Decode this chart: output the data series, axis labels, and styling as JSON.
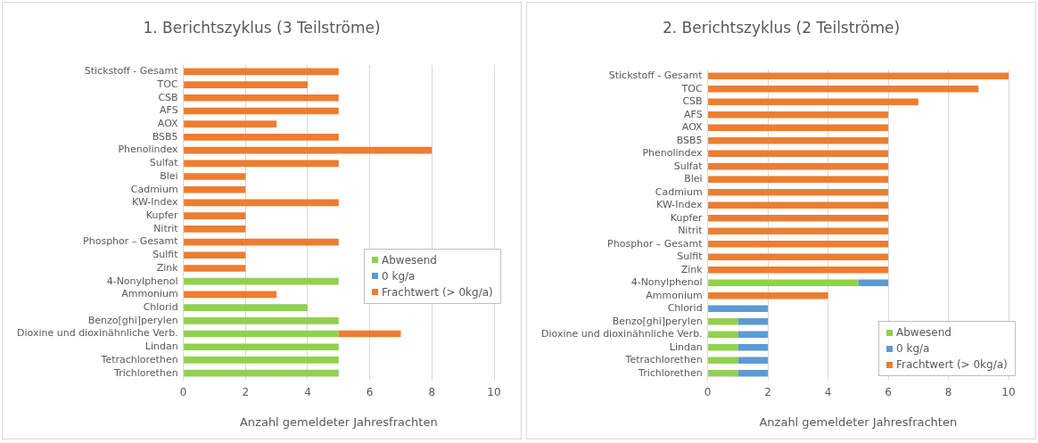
{
  "chart_data": [
    {
      "type": "bar",
      "orientation": "horizontal",
      "stacked": true,
      "title": "1. Berichtszyklus (3 Teilströme)",
      "xlabel": "Anzahl gemeldeter Jahresfrachten",
      "categories": [
        "Stickstoff - Gesamt",
        "TOC",
        "CSB",
        "AFS",
        "AOX",
        "BSB5",
        "Phenolindex",
        "Sulfat",
        "Blei",
        "Cadmium",
        "KW-Index",
        "Kupfer",
        "Nitrit",
        "Phosphor – Gesamt",
        "Sulfit",
        "Zink",
        "4-Nonylphenol",
        "Ammonium",
        "Chlorid",
        "Benzo[ghi]perylen",
        "Dioxine und dioxinähnliche Verb.",
        "Lindan",
        "Tetrachlorethen",
        "Trichlorethen"
      ],
      "series": [
        {
          "name": "Abwesend",
          "color": "#92d050",
          "values": [
            0,
            0,
            0,
            0,
            0,
            0,
            0,
            0,
            0,
            0,
            0,
            0,
            0,
            0,
            0,
            0,
            5,
            0,
            4,
            5,
            5,
            5,
            5,
            5
          ]
        },
        {
          "name": "0 kg/a",
          "color": "#5b9bd5",
          "values": [
            0,
            0,
            0,
            0,
            0,
            0,
            0,
            0,
            0,
            0,
            0,
            0,
            0,
            0,
            0,
            0,
            0,
            0,
            0,
            0,
            0,
            0,
            0,
            0
          ]
        },
        {
          "name": "Frachtwert (> 0kg/a)",
          "color": "#ed7d31",
          "values": [
            5,
            4,
            5,
            5,
            3,
            5,
            8,
            5,
            2,
            2,
            5,
            2,
            2,
            5,
            2,
            2,
            0,
            3,
            0,
            0,
            2,
            0,
            0,
            0
          ]
        }
      ],
      "xlim": [
        0,
        10
      ],
      "xticks": [
        0,
        2,
        4,
        6,
        8,
        10
      ],
      "grid": "x",
      "legend": "right"
    },
    {
      "type": "bar",
      "orientation": "horizontal",
      "stacked": true,
      "title": "2. Berichtszyklus (2 Teilströme)",
      "xlabel": "Anzahl gemeldeter Jahresfrachten",
      "categories": [
        "Stickstoff - Gesamt",
        "TOC",
        "CSB",
        "AFS",
        "AOX",
        "BSB5",
        "Phenolindex",
        "Sulfat",
        "Blei",
        "Cadmium",
        "KW-Index",
        "Kupfer",
        "Nitrit",
        "Phosphor – Gesamt",
        "Sulfit",
        "Zink",
        "4-Nonylphenol",
        "Ammonium",
        "Chlorid",
        "Benzo[ghi]perylen",
        "Dioxine und dioxinähnliche Verb.",
        "Lindan",
        "Tetrachlorethen",
        "Trichlorethen"
      ],
      "series": [
        {
          "name": "Abwesend",
          "color": "#92d050",
          "values": [
            0,
            0,
            0,
            0,
            0,
            0,
            0,
            0,
            0,
            0,
            0,
            0,
            0,
            0,
            0,
            0,
            5,
            0,
            0,
            1,
            1,
            1,
            1,
            1
          ]
        },
        {
          "name": "0 kg/a",
          "color": "#5b9bd5",
          "values": [
            0,
            0,
            0,
            0,
            0,
            0,
            0,
            0,
            0,
            0,
            0,
            0,
            0,
            0,
            0,
            0,
            1,
            0,
            2,
            1,
            1,
            1,
            1,
            1
          ]
        },
        {
          "name": "Frachtwert (> 0kg/a)",
          "color": "#ed7d31",
          "values": [
            10,
            9,
            7,
            6,
            6,
            6,
            6,
            6,
            6,
            6,
            6,
            6,
            6,
            6,
            6,
            6,
            0,
            4,
            0,
            0,
            0,
            0,
            0,
            0
          ]
        }
      ],
      "xlim": [
        0,
        10
      ],
      "xticks": [
        0,
        2,
        4,
        6,
        8,
        10
      ],
      "grid": "x",
      "legend": "bottom right"
    }
  ]
}
